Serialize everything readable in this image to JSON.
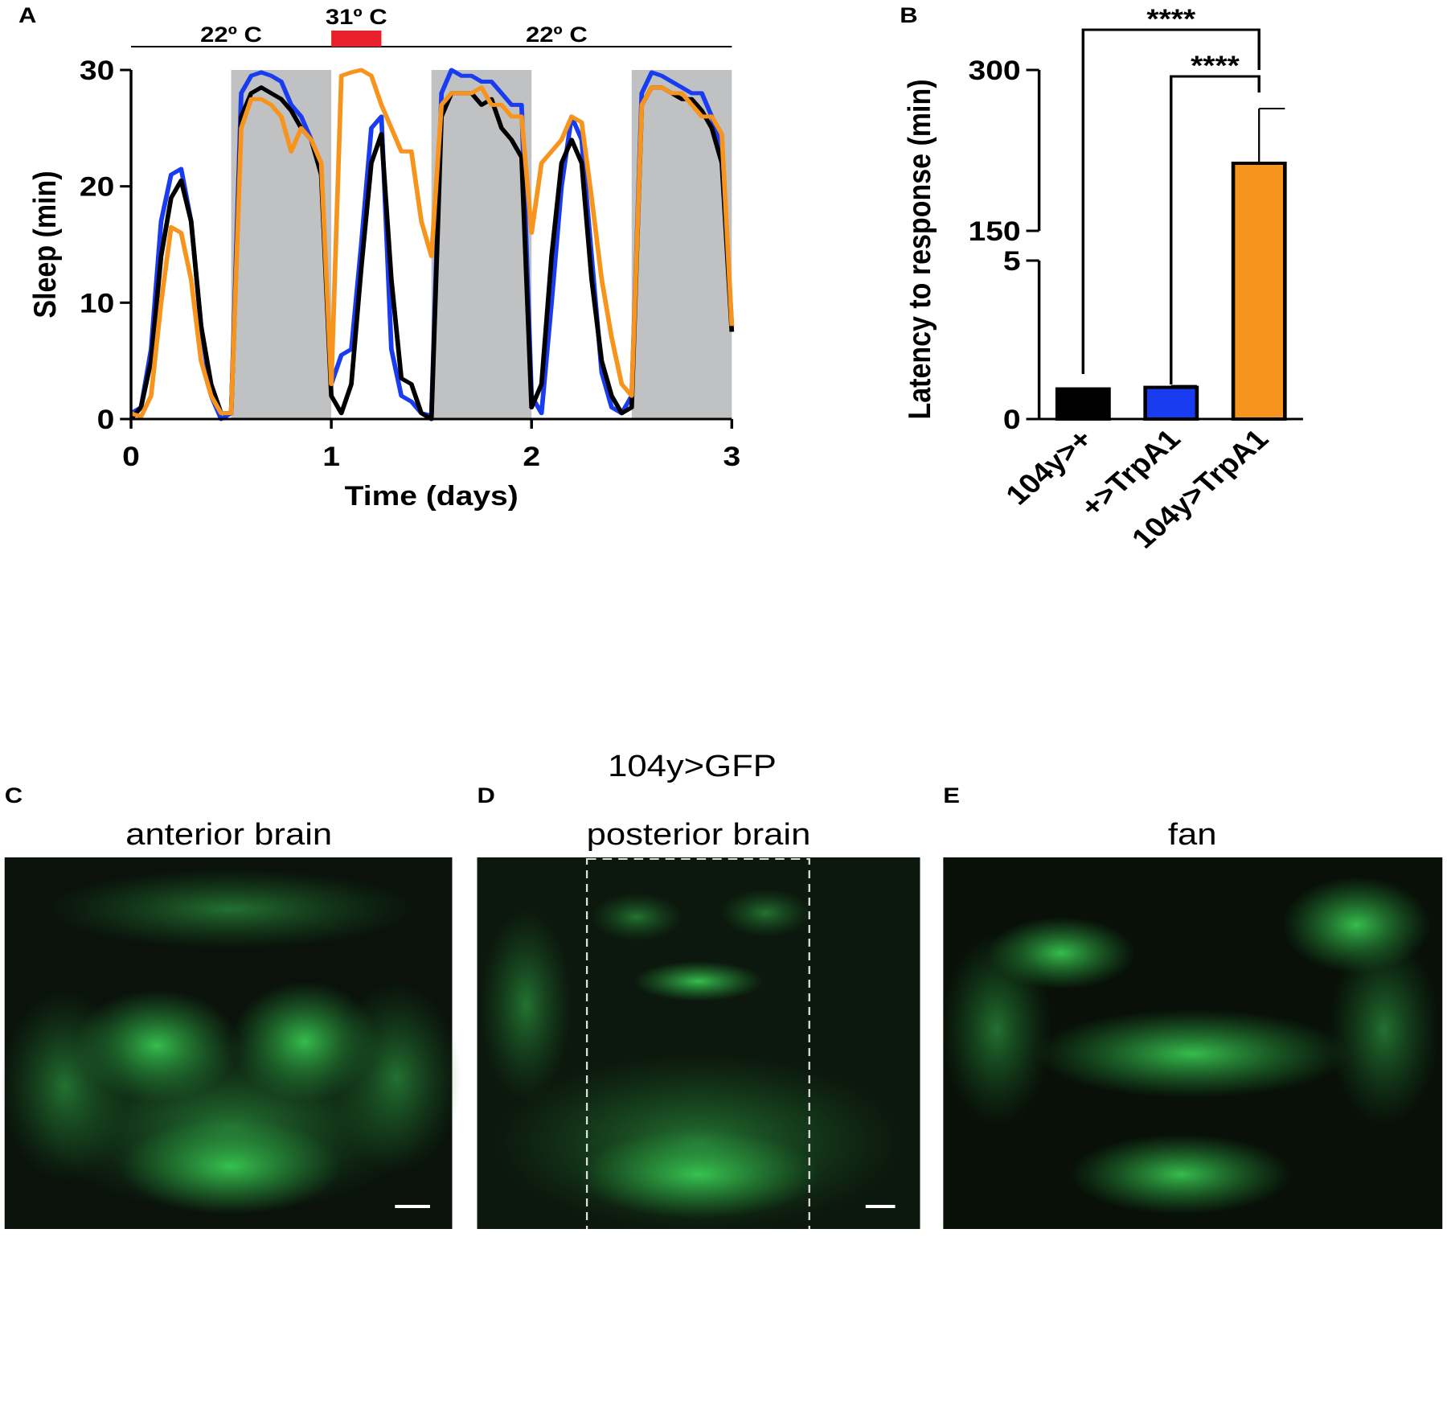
{
  "chart_data": [
    {
      "type": "line",
      "panel_label": "A",
      "x_label": "Time (days)",
      "y_label": "Sleep (min)",
      "x": [
        0,
        0.05,
        0.1,
        0.15,
        0.2,
        0.25,
        0.3,
        0.35,
        0.4,
        0.45,
        0.5,
        0.55,
        0.6,
        0.65,
        0.7,
        0.75,
        0.8,
        0.85,
        0.9,
        0.95,
        1,
        1.05,
        1.1,
        1.15,
        1.2,
        1.25,
        1.3,
        1.35,
        1.4,
        1.45,
        1.5,
        1.55,
        1.6,
        1.65,
        1.7,
        1.75,
        1.8,
        1.85,
        1.9,
        1.95,
        2,
        2.05,
        2.1,
        2.15,
        2.2,
        2.25,
        2.3,
        2.35,
        2.4,
        2.45,
        2.5,
        2.55,
        2.6,
        2.65,
        2.7,
        2.75,
        2.8,
        2.85,
        2.9,
        2.95,
        3
      ],
      "series": [
        {
          "color": "#1a3cf0",
          "values": [
            0.5,
            1,
            6,
            17,
            21,
            21.5,
            17,
            8,
            2,
            0,
            0.5,
            28,
            29.5,
            29.8,
            29.5,
            29,
            27,
            26,
            24,
            21,
            3,
            5.5,
            6,
            15,
            25,
            26,
            6,
            2,
            1.5,
            0.5,
            0.3,
            28,
            30,
            29.5,
            29.5,
            29,
            29,
            28,
            27,
            27,
            2,
            0.5,
            10,
            20,
            26,
            24,
            14,
            4,
            1,
            0.5,
            2,
            28,
            29.8,
            29.5,
            29,
            28.5,
            28,
            28,
            26,
            23,
            8
          ]
        },
        {
          "color": "#000000",
          "values": [
            0,
            1,
            5,
            14,
            19,
            20.5,
            17,
            8,
            3,
            0.5,
            0.5,
            26,
            28,
            28.5,
            28,
            27.5,
            26.5,
            25,
            24,
            21,
            2,
            0.5,
            3,
            13,
            22,
            24.5,
            12,
            3.5,
            3,
            0.5,
            0,
            26,
            28,
            28,
            28,
            27,
            27.5,
            25,
            24,
            22.5,
            1,
            3,
            14,
            22,
            24,
            22,
            12,
            5,
            2,
            0.5,
            1,
            27,
            28.5,
            28.5,
            28,
            27.5,
            27.5,
            26.5,
            25,
            22,
            7.5
          ]
        },
        {
          "color": "#f7941d",
          "values": [
            0.5,
            0.2,
            2,
            10,
            16.5,
            16,
            12,
            5,
            2,
            0.5,
            0.5,
            25,
            27.5,
            27.5,
            27,
            26,
            23,
            25,
            24,
            22,
            3,
            29.5,
            29.8,
            30,
            29.5,
            27,
            25,
            23,
            23,
            17,
            14,
            27,
            28,
            28,
            28,
            28.5,
            27,
            27,
            26,
            26,
            16,
            22,
            23,
            24,
            26,
            25.5,
            19,
            12,
            7,
            3,
            2,
            27,
            28.5,
            28.5,
            28,
            28,
            27,
            26,
            26,
            24.5,
            8
          ]
        }
      ],
      "xlim": [
        0,
        3
      ],
      "xticks": [
        0,
        1,
        2,
        3
      ],
      "ylim": [
        0,
        30
      ],
      "yticks": [
        0,
        10,
        20,
        30
      ],
      "shading": [
        [
          0.5,
          1
        ],
        [
          1.5,
          2
        ],
        [
          2.5,
          3
        ]
      ],
      "shading_color": "#c0c1c3",
      "temperature": [
        {
          "label": "22º C",
          "range": [
            0,
            1
          ]
        },
        {
          "label": "31º C",
          "range": [
            1,
            1.25
          ],
          "color": "#e8202a"
        },
        {
          "label": "22º C",
          "range": [
            1.25,
            3
          ]
        }
      ]
    },
    {
      "type": "bar",
      "panel_label": "B",
      "y_label": "Latency to response (min)",
      "categories": [
        "104y>+",
        "+>TrpA1",
        "104y>TrpA1"
      ],
      "values": [
        0.95,
        1.0,
        213
      ],
      "errors": [
        0,
        0.05,
        51
      ],
      "colors": [
        "#000000",
        "#1a3cf0",
        "#f7941d"
      ],
      "ylim_segments": [
        [
          0,
          5
        ],
        [
          150,
          300
        ]
      ],
      "yticks": [
        0,
        5,
        150,
        300
      ],
      "annotations": [
        {
          "text": "****",
          "from": 0,
          "to": 2
        },
        {
          "text": "****",
          "from": 1,
          "to": 2
        }
      ]
    }
  ],
  "figure": {
    "title": "104y>GFP",
    "panels": [
      {
        "label": "C",
        "title": "anterior brain"
      },
      {
        "label": "D",
        "title": "posterior brain"
      },
      {
        "label": "E",
        "title": "fan"
      }
    ]
  }
}
